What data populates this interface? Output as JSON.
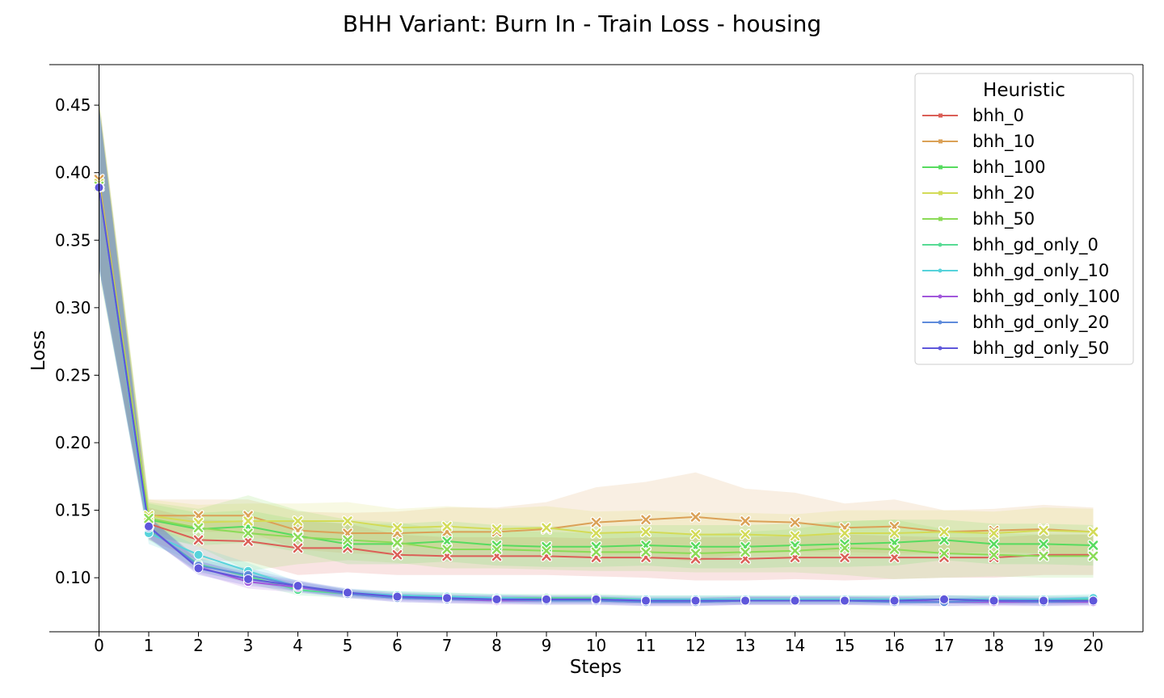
{
  "chart_data": {
    "type": "line",
    "title": "BHH Variant: Burn In - Train Loss - housing",
    "xlabel": "Steps",
    "ylabel": "Loss",
    "x": [
      0,
      1,
      2,
      3,
      4,
      5,
      6,
      7,
      8,
      9,
      10,
      11,
      12,
      13,
      14,
      15,
      16,
      17,
      18,
      19,
      20
    ],
    "xticks": [
      "0",
      "1",
      "2",
      "3",
      "4",
      "5",
      "6",
      "7",
      "8",
      "9",
      "10",
      "11",
      "12",
      "13",
      "14",
      "15",
      "16",
      "17",
      "18",
      "19",
      "20"
    ],
    "yticks": [
      "0.10",
      "0.15",
      "0.20",
      "0.25",
      "0.30",
      "0.35",
      "0.40",
      "0.45"
    ],
    "ylim": [
      0.06,
      0.48
    ],
    "xlim": [
      -1,
      21
    ],
    "grid": false,
    "legend": {
      "title": "Heuristic",
      "position": "top-right"
    },
    "series": [
      {
        "name": "bhh_0",
        "color": "#db5f57",
        "marker": "x",
        "values": [
          0.392,
          0.14,
          0.128,
          0.127,
          0.122,
          0.122,
          0.117,
          0.116,
          0.116,
          0.116,
          0.115,
          0.115,
          0.114,
          0.114,
          0.115,
          0.115,
          0.115,
          0.115,
          0.115,
          0.117,
          0.117
        ],
        "band_width": [
          0.06,
          0.012,
          0.015,
          0.015,
          0.02,
          0.018,
          0.015,
          0.014,
          0.014,
          0.014,
          0.014,
          0.015,
          0.016,
          0.016,
          0.016,
          0.017,
          0.016,
          0.015,
          0.015,
          0.015,
          0.015
        ]
      },
      {
        "name": "bhh_10",
        "color": "#dba157",
        "marker": "x",
        "values": [
          0.395,
          0.146,
          0.146,
          0.146,
          0.135,
          0.133,
          0.133,
          0.134,
          0.134,
          0.136,
          0.141,
          0.143,
          0.145,
          0.142,
          0.141,
          0.137,
          0.138,
          0.134,
          0.135,
          0.136,
          0.134
        ],
        "band_width": [
          0.06,
          0.012,
          0.012,
          0.012,
          0.014,
          0.015,
          0.016,
          0.018,
          0.018,
          0.02,
          0.026,
          0.028,
          0.033,
          0.024,
          0.022,
          0.018,
          0.02,
          0.016,
          0.016,
          0.018,
          0.018
        ]
      },
      {
        "name": "bhh_100",
        "color": "#57db5f",
        "marker": "x",
        "values": [
          0.39,
          0.143,
          0.136,
          0.138,
          0.131,
          0.125,
          0.125,
          0.127,
          0.124,
          0.123,
          0.123,
          0.124,
          0.123,
          0.123,
          0.124,
          0.125,
          0.126,
          0.128,
          0.125,
          0.125,
          0.124
        ],
        "band_width": [
          0.06,
          0.012,
          0.012,
          0.012,
          0.012,
          0.015,
          0.015,
          0.015,
          0.015,
          0.015,
          0.015,
          0.015,
          0.016,
          0.016,
          0.016,
          0.017,
          0.017,
          0.015,
          0.015,
          0.015,
          0.015
        ]
      },
      {
        "name": "bhh_20",
        "color": "#d3db57",
        "marker": "x",
        "values": [
          0.392,
          0.146,
          0.141,
          0.142,
          0.142,
          0.142,
          0.137,
          0.138,
          0.136,
          0.137,
          0.133,
          0.134,
          0.132,
          0.132,
          0.131,
          0.133,
          0.133,
          0.134,
          0.133,
          0.135,
          0.134
        ],
        "band_width": [
          0.06,
          0.012,
          0.013,
          0.013,
          0.013,
          0.014,
          0.014,
          0.015,
          0.015,
          0.016,
          0.016,
          0.016,
          0.016,
          0.016,
          0.016,
          0.017,
          0.017,
          0.016,
          0.016,
          0.017,
          0.017
        ]
      },
      {
        "name": "bhh_50",
        "color": "#8bdb57",
        "marker": "x",
        "values": [
          0.39,
          0.144,
          0.137,
          0.133,
          0.13,
          0.128,
          0.126,
          0.121,
          0.121,
          0.12,
          0.119,
          0.119,
          0.118,
          0.119,
          0.12,
          0.122,
          0.121,
          0.118,
          0.117,
          0.116,
          0.116
        ],
        "band_width": [
          0.065,
          0.012,
          0.014,
          0.028,
          0.02,
          0.015,
          0.015,
          0.014,
          0.014,
          0.014,
          0.014,
          0.014,
          0.014,
          0.015,
          0.016,
          0.02,
          0.022,
          0.018,
          0.016,
          0.016,
          0.016
        ]
      },
      {
        "name": "bhh_gd_only_0",
        "color": "#57db94",
        "marker": "o",
        "values": [
          0.389,
          0.136,
          0.11,
          0.101,
          0.091,
          0.088,
          0.087,
          0.086,
          0.085,
          0.085,
          0.085,
          0.084,
          0.084,
          0.084,
          0.084,
          0.084,
          0.084,
          0.084,
          0.084,
          0.084,
          0.084
        ],
        "band_width": [
          0.06,
          0.008,
          0.005,
          0.005,
          0.004,
          0.003,
          0.003,
          0.003,
          0.003,
          0.003,
          0.003,
          0.003,
          0.003,
          0.003,
          0.003,
          0.003,
          0.003,
          0.003,
          0.003,
          0.003,
          0.003
        ]
      },
      {
        "name": "bhh_gd_only_10",
        "color": "#57d3db",
        "marker": "o",
        "values": [
          0.389,
          0.133,
          0.117,
          0.105,
          0.093,
          0.089,
          0.087,
          0.086,
          0.085,
          0.084,
          0.084,
          0.084,
          0.084,
          0.084,
          0.084,
          0.084,
          0.084,
          0.084,
          0.084,
          0.084,
          0.085
        ],
        "band_width": [
          0.06,
          0.008,
          0.006,
          0.006,
          0.004,
          0.003,
          0.003,
          0.003,
          0.003,
          0.003,
          0.003,
          0.003,
          0.003,
          0.003,
          0.003,
          0.003,
          0.003,
          0.003,
          0.003,
          0.003,
          0.003
        ]
      },
      {
        "name": "bhh_gd_only_100",
        "color": "#a157db",
        "marker": "o",
        "values": [
          0.389,
          0.137,
          0.108,
          0.097,
          0.093,
          0.088,
          0.085,
          0.084,
          0.083,
          0.083,
          0.083,
          0.082,
          0.082,
          0.083,
          0.083,
          0.083,
          0.083,
          0.082,
          0.082,
          0.082,
          0.082
        ],
        "band_width": [
          0.06,
          0.008,
          0.005,
          0.005,
          0.004,
          0.003,
          0.003,
          0.003,
          0.003,
          0.003,
          0.003,
          0.003,
          0.003,
          0.003,
          0.003,
          0.003,
          0.003,
          0.003,
          0.003,
          0.003,
          0.003
        ]
      },
      {
        "name": "bhh_gd_only_20",
        "color": "#5f8bdb",
        "marker": "o",
        "values": [
          0.389,
          0.137,
          0.109,
          0.102,
          0.094,
          0.088,
          0.085,
          0.084,
          0.084,
          0.083,
          0.083,
          0.082,
          0.082,
          0.083,
          0.083,
          0.083,
          0.082,
          0.082,
          0.083,
          0.082,
          0.083
        ],
        "band_width": [
          0.06,
          0.008,
          0.005,
          0.005,
          0.004,
          0.003,
          0.003,
          0.003,
          0.003,
          0.003,
          0.003,
          0.003,
          0.003,
          0.003,
          0.003,
          0.003,
          0.003,
          0.003,
          0.003,
          0.003,
          0.003
        ]
      },
      {
        "name": "bhh_gd_only_50",
        "color": "#5f57db",
        "marker": "o",
        "values": [
          0.389,
          0.138,
          0.107,
          0.099,
          0.094,
          0.089,
          0.086,
          0.085,
          0.084,
          0.084,
          0.084,
          0.083,
          0.083,
          0.083,
          0.083,
          0.083,
          0.083,
          0.084,
          0.083,
          0.083,
          0.083
        ],
        "band_width": [
          0.06,
          0.008,
          0.005,
          0.005,
          0.004,
          0.003,
          0.003,
          0.003,
          0.003,
          0.003,
          0.003,
          0.003,
          0.003,
          0.003,
          0.003,
          0.003,
          0.003,
          0.003,
          0.003,
          0.003,
          0.003
        ]
      }
    ]
  }
}
